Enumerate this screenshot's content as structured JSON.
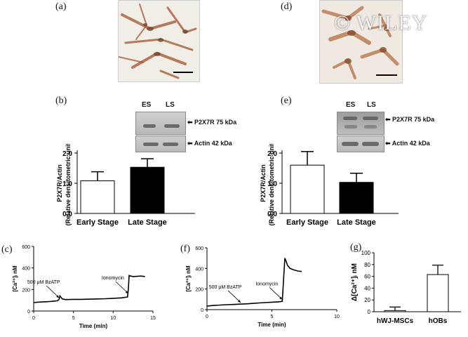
{
  "panels": {
    "a": "(a)",
    "b": "(b)",
    "c": "(c)",
    "d": "(d)",
    "e": "(e)",
    "f": "(f)",
    "g": "(g)"
  },
  "watermark": "© WILEY",
  "blots": {
    "b": {
      "lanes": [
        "ES",
        "LS"
      ],
      "labels": [
        "P2X7R 75 kDa",
        "Actin 42 kDa"
      ]
    },
    "e": {
      "lanes": [
        "ES",
        "LS"
      ],
      "labels": [
        "P2X7R 75 kDa",
        "Actin 42 kDa"
      ]
    }
  },
  "colors": {
    "bar_fill_late_b": "#000000",
    "bar_fill_late_e": "#000000",
    "bar_fill_open": "#ffffff",
    "trace": "#000000",
    "stain": "#a0522d"
  },
  "chart_data": [
    {
      "id": "b",
      "type": "bar",
      "categories": [
        "Early Stage",
        "Late Stage"
      ],
      "values": [
        1.08,
        1.53
      ],
      "errors": [
        0.3,
        0.28
      ],
      "fills": [
        "#ffffff",
        "#000000"
      ],
      "ylabel_lines": [
        "P2X7R/Actin",
        "(Relative densitometric unit)"
      ],
      "ylim": [
        0,
        2.0
      ],
      "yticks": [
        "0.0",
        "1.0",
        "2.0"
      ]
    },
    {
      "id": "e",
      "type": "bar",
      "categories": [
        "Early Stage",
        "Late Stage"
      ],
      "values": [
        1.6,
        1.03
      ],
      "errors": [
        0.45,
        0.3
      ],
      "fills": [
        "#ffffff",
        "#000000"
      ],
      "ylabel_lines": [
        "P2X7R/Actin",
        "(Relative densitometric unit)"
      ],
      "ylim": [
        0,
        2.0
      ],
      "yticks": [
        "0.0",
        "1.0",
        "2.0"
      ]
    },
    {
      "id": "c",
      "type": "line",
      "xlabel": "Time (min)",
      "ylabel": "[Ca²⁺]ᵢ nM",
      "xlim": [
        0,
        15
      ],
      "ylim": [
        0,
        600
      ],
      "xticks": [
        "0",
        "5",
        "10",
        "15"
      ],
      "yticks": [
        "0",
        "200",
        "400",
        "600"
      ],
      "annotations": [
        {
          "text": "500 μM BzATP",
          "x": 3.2,
          "y": 110
        },
        {
          "text": "Ionomycin",
          "x": 11.9,
          "y": 150
        }
      ],
      "x": [
        0,
        0.5,
        1,
        1.5,
        2,
        2.5,
        3,
        3.2,
        3.3,
        3.6,
        4,
        5,
        6,
        7,
        8,
        9,
        10,
        11,
        11.8,
        11.9,
        12.0,
        12.2,
        12.5,
        13,
        13.5,
        14
      ],
      "y": [
        78,
        82,
        84,
        86,
        88,
        92,
        95,
        110,
        140,
        112,
        106,
        108,
        108,
        110,
        112,
        114,
        118,
        122,
        130,
        200,
        330,
        325,
        320,
        322,
        325,
        320
      ]
    },
    {
      "id": "f",
      "type": "line",
      "xlabel": "Time (min)",
      "ylabel": "[Ca²⁺]ᵢ nM",
      "xlim": [
        0,
        10
      ],
      "ylim": [
        0,
        600
      ],
      "xticks": [
        "0",
        "5",
        "10"
      ],
      "yticks": [
        "0",
        "200",
        "400",
        "600"
      ],
      "annotations": [
        {
          "text": "500 μM BzATP",
          "x": 2.6,
          "y": 55
        },
        {
          "text": "Ionomycin",
          "x": 5.8,
          "y": 85
        }
      ],
      "x": [
        0,
        0.5,
        1,
        1.5,
        2,
        2.5,
        3,
        3.5,
        4,
        4.5,
        5,
        5.5,
        5.8,
        5.9,
        6.0,
        6.1,
        6.2,
        6.4,
        6.7,
        7,
        7.3
      ],
      "y": [
        35,
        40,
        44,
        48,
        50,
        53,
        56,
        60,
        65,
        68,
        72,
        76,
        80,
        300,
        500,
        470,
        430,
        400,
        385,
        375,
        370
      ]
    },
    {
      "id": "g",
      "type": "bar",
      "categories": [
        "hWJ-MSCs",
        "hOBs"
      ],
      "values": [
        2,
        63
      ],
      "errors": [
        6,
        16
      ],
      "fills": [
        "#ffffff",
        "#ffffff"
      ],
      "ylabel": "Δ[Ca²⁺]ᵢ nM",
      "ylim": [
        0,
        100
      ],
      "yticks": [
        "0",
        "20",
        "40",
        "60",
        "80",
        "100"
      ]
    }
  ]
}
